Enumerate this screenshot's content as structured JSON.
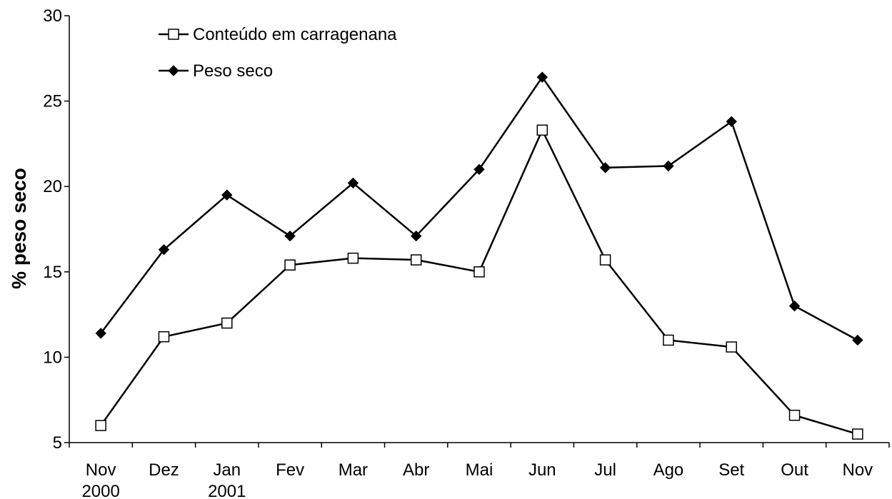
{
  "chart_data": {
    "type": "line",
    "y_label": "% peso seco",
    "categories": [
      "Nov 2000",
      "Dez",
      "Jan 2001",
      "Fev",
      "Mar",
      "Abr",
      "Mai",
      "Jun",
      "Jul",
      "Ago",
      "Set",
      "Out",
      "Nov"
    ],
    "series": [
      {
        "name": "Conteúdo em carragenana",
        "color": "#000000",
        "marker": "square",
        "values": [
          6.0,
          11.2,
          12.0,
          15.4,
          15.8,
          15.7,
          15.0,
          23.3,
          15.7,
          11.0,
          10.6,
          6.6,
          5.5
        ]
      },
      {
        "name": "Peso seco",
        "color": "#000000",
        "marker": "diamond",
        "values": [
          11.4,
          16.3,
          19.5,
          17.1,
          20.2,
          17.1,
          21.0,
          26.4,
          21.1,
          21.2,
          23.8,
          13.0,
          11.0
        ]
      }
    ],
    "ylim": [
      5,
      30
    ],
    "yticks": [
      5,
      10,
      15,
      20,
      25,
      30
    ],
    "grid": false,
    "legend": "top-left"
  }
}
